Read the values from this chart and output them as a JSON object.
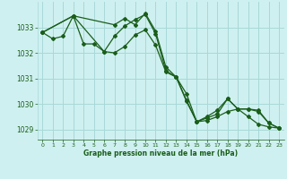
{
  "background_color": "#cff0f0",
  "grid_color": "#a8d8d8",
  "line_color": "#1a5e1a",
  "title": "Graphe pression niveau de la mer (hPa)",
  "xlim": [
    -0.5,
    23.5
  ],
  "ylim": [
    1028.6,
    1034.0
  ],
  "yticks": [
    1029,
    1030,
    1031,
    1032,
    1033
  ],
  "xticks": [
    0,
    1,
    2,
    3,
    4,
    5,
    6,
    7,
    8,
    9,
    10,
    11,
    12,
    13,
    14,
    15,
    16,
    17,
    18,
    19,
    20,
    21,
    22,
    23
  ],
  "series": [
    {
      "x": [
        0,
        1,
        2,
        3,
        4,
        5,
        6,
        7,
        8,
        9,
        10,
        11,
        12,
        13,
        14,
        15,
        16,
        17,
        18,
        19,
        20,
        21,
        22,
        23
      ],
      "y": [
        1032.8,
        1032.55,
        1032.65,
        1033.45,
        1032.35,
        1032.35,
        1032.05,
        1032.65,
        1033.05,
        1033.3,
        1033.5,
        1032.75,
        1031.3,
        1031.05,
        1030.1,
        1029.3,
        1029.35,
        1029.5,
        1029.7,
        1029.8,
        1029.5,
        1029.2,
        1029.1,
        1029.05
      ]
    },
    {
      "x": [
        0,
        3,
        7,
        8,
        9,
        10,
        11,
        12,
        13,
        14,
        15,
        16,
        17,
        18,
        19,
        20,
        21,
        22,
        23
      ],
      "y": [
        1032.8,
        1033.45,
        1033.1,
        1033.35,
        1033.1,
        1033.55,
        1032.85,
        1031.45,
        1031.05,
        1030.15,
        1029.3,
        1029.45,
        1029.6,
        1030.2,
        1029.8,
        1029.8,
        1029.75,
        1029.25,
        1029.05
      ]
    },
    {
      "x": [
        0,
        3,
        6,
        7,
        8,
        9,
        10,
        11,
        12,
        13,
        14,
        15,
        16,
        17,
        18,
        19,
        20,
        21,
        22,
        23
      ],
      "y": [
        1032.8,
        1033.45,
        1032.05,
        1032.0,
        1032.25,
        1032.7,
        1032.9,
        1032.3,
        1031.25,
        1031.05,
        1030.4,
        1029.3,
        1029.5,
        1029.75,
        1030.2,
        1029.8,
        1029.8,
        1029.7,
        1029.25,
        1029.05
      ]
    }
  ]
}
